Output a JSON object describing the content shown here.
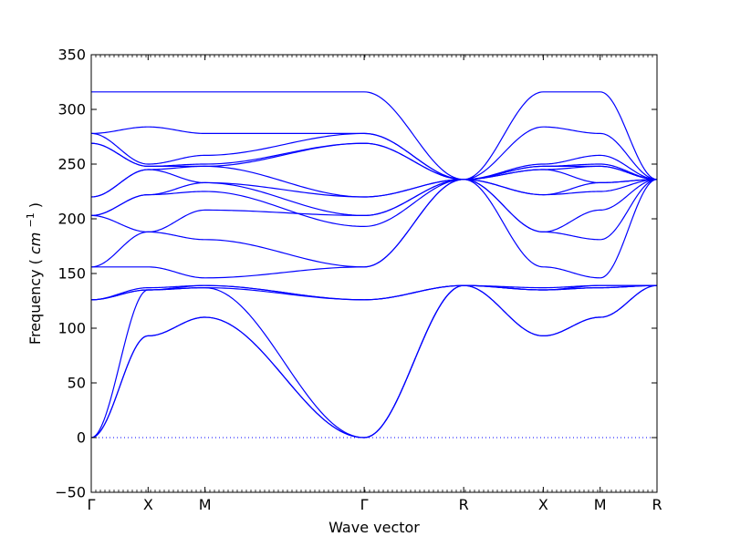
{
  "chart_data": {
    "type": "line",
    "title": "",
    "xlabel": "Wave vector",
    "ylabel": "Frequency",
    "ylabel_unit": "cm",
    "ylabel_unit_exp": "−1",
    "ylim": [
      -50,
      350
    ],
    "yticks": [
      -50,
      0,
      50,
      100,
      150,
      200,
      250,
      300,
      350
    ],
    "path_labels": [
      "Γ",
      "X",
      "M",
      "Γ",
      "R",
      "X",
      "M",
      "R"
    ],
    "path_positions": [
      0,
      1,
      2,
      4.8,
      6.55,
      7.95,
      8.95,
      9.95
    ],
    "grid": false,
    "line_color": "#0000ff",
    "zero_line": {
      "y": 0,
      "style": "dotted",
      "color": "#0000ff"
    },
    "series": [
      {
        "values": [
          0,
          93,
          110,
          0,
          139,
          93,
          110,
          139
        ]
      },
      {
        "values": [
          0,
          93,
          110,
          0,
          139,
          93,
          110,
          139
        ]
      },
      {
        "values": [
          0,
          135,
          137,
          0,
          139,
          135,
          137,
          139
        ]
      },
      {
        "values": [
          126,
          135,
          137,
          126,
          139,
          135,
          137,
          139
        ]
      },
      {
        "values": [
          126,
          135,
          139,
          126,
          139,
          135,
          139,
          139
        ]
      },
      {
        "values": [
          126,
          137,
          139,
          126,
          139,
          137,
          139,
          139
        ]
      },
      {
        "values": [
          156,
          156,
          146,
          156,
          236,
          156,
          146,
          236
        ]
      },
      {
        "values": [
          156,
          188,
          181,
          156,
          236,
          188,
          181,
          236
        ]
      },
      {
        "values": [
          203,
          188,
          208,
          203,
          236,
          188,
          208,
          236
        ]
      },
      {
        "values": [
          203,
          222,
          225,
          193,
          236,
          222,
          225,
          236
        ]
      },
      {
        "values": [
          203,
          222,
          233,
          203,
          236,
          222,
          233,
          236
        ]
      },
      {
        "values": [
          220,
          245,
          233,
          220,
          236,
          245,
          233,
          236
        ]
      },
      {
        "values": [
          220,
          245,
          248,
          220,
          236,
          245,
          248,
          236
        ]
      },
      {
        "values": [
          269,
          248,
          248,
          269,
          236,
          248,
          248,
          236
        ]
      },
      {
        "values": [
          269,
          248,
          250,
          269,
          236,
          248,
          250,
          236
        ]
      },
      {
        "values": [
          278,
          250,
          258,
          278,
          236,
          250,
          258,
          236
        ]
      },
      {
        "values": [
          278,
          284,
          278,
          278,
          236,
          284,
          278,
          236
        ]
      },
      {
        "values": [
          316,
          316,
          316,
          316,
          236,
          316,
          316,
          236
        ]
      }
    ]
  }
}
